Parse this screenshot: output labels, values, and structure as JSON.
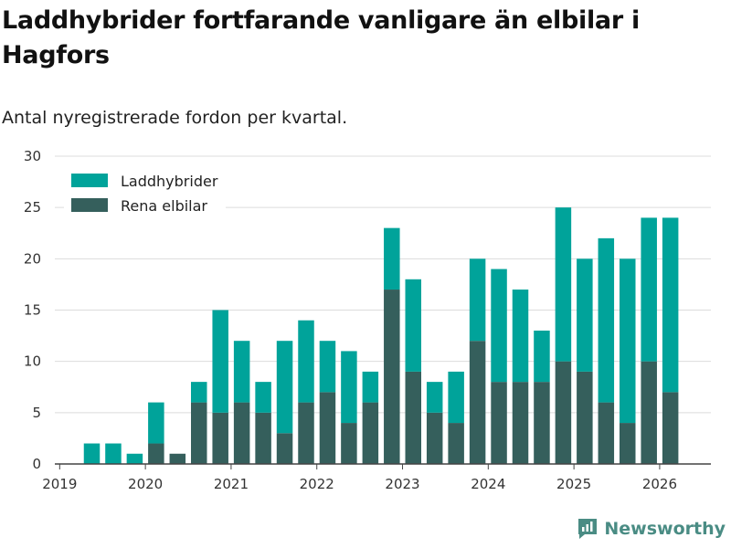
{
  "title": "Laddhybrider fortfarande vanligare än elbilar i Hagfors",
  "subtitle": "Antal nyregistrerade fordon per kvartal.",
  "brand": "Newsworthy",
  "colors": {
    "phev": "#00a39a",
    "ev": "#355f5c",
    "grid": "#dcdcdc",
    "axis": "#444444",
    "brand": "#4a8c84"
  },
  "chart_data": {
    "type": "bar",
    "stacked": true,
    "categories": [
      "2019 Q2",
      "2019 Q3",
      "2019 Q4",
      "2020 Q1",
      "2020 Q2",
      "2020 Q3",
      "2020 Q4",
      "2021 Q1",
      "2021 Q2",
      "2021 Q3",
      "2021 Q4",
      "2022 Q1",
      "2022 Q2",
      "2022 Q3",
      "2022 Q4",
      "2023 Q1",
      "2023 Q2",
      "2023 Q3",
      "2023 Q4",
      "2024 Q1",
      "2024 Q2",
      "2024 Q3",
      "2024 Q4",
      "2025 Q1",
      "2025 Q2",
      "2025 Q3",
      "2025 Q4",
      "2026 Q1"
    ],
    "series": [
      {
        "name": "Rena elbilar",
        "color": "#355f5c",
        "values": [
          0,
          0,
          0,
          2,
          1,
          6,
          5,
          6,
          5,
          3,
          6,
          7,
          4,
          6,
          17,
          9,
          5,
          4,
          12,
          8,
          8,
          8,
          10,
          9,
          6,
          4,
          10,
          7
        ]
      },
      {
        "name": "Laddhybrider",
        "color": "#00a39a",
        "values": [
          2,
          2,
          1,
          4,
          0,
          2,
          10,
          6,
          3,
          9,
          8,
          5,
          7,
          3,
          6,
          9,
          3,
          5,
          8,
          11,
          9,
          5,
          15,
          11,
          16,
          16,
          14,
          17
        ]
      }
    ],
    "legend": [
      "Laddhybrider",
      "Rena elbilar"
    ],
    "legend_position": "top-left",
    "xticks": [
      "2019",
      "2020",
      "2021",
      "2022",
      "2023",
      "2024",
      "2025",
      "2026"
    ],
    "ylim": [
      0,
      30
    ],
    "yticks": [
      0,
      5,
      10,
      15,
      20,
      25,
      30
    ],
    "xlabel": "",
    "ylabel": ""
  }
}
